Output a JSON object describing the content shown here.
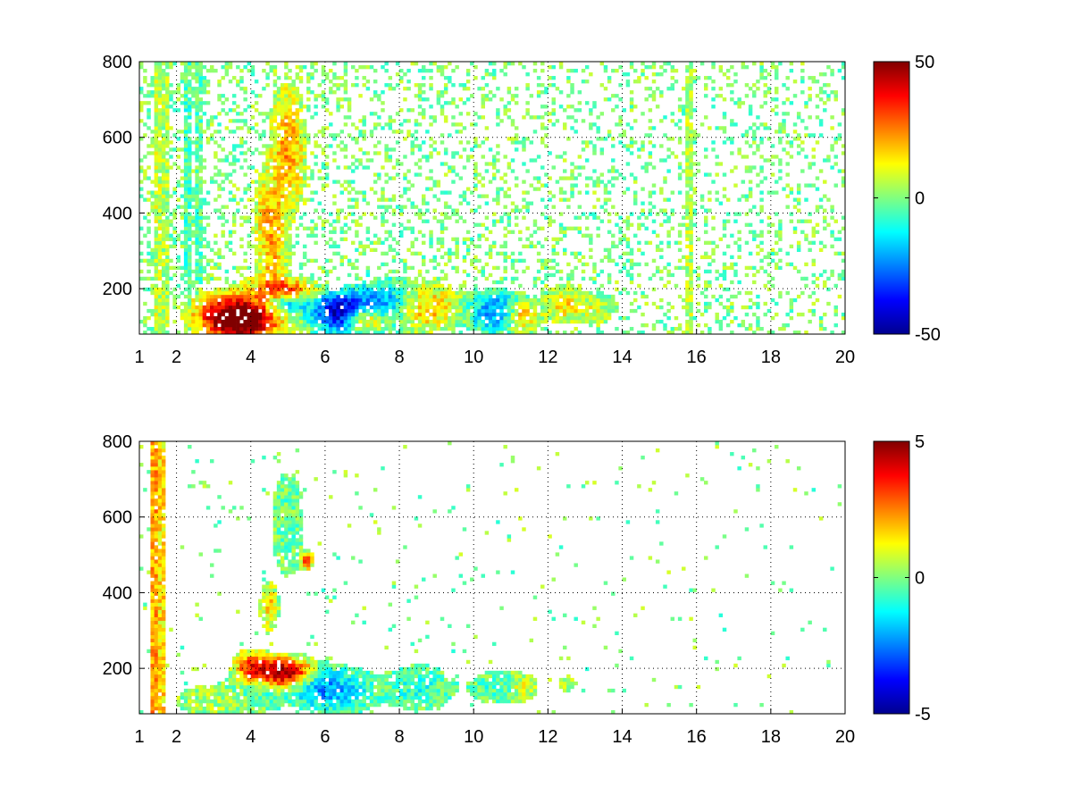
{
  "chart_data": [
    {
      "type": "heatmap",
      "title": "",
      "xlabel": "",
      "ylabel": "",
      "xlim": [
        1,
        20
      ],
      "ylim": [
        80,
        800
      ],
      "xticks": [
        "1",
        "2",
        "4",
        "6",
        "8",
        "10",
        "12",
        "14",
        "16",
        "18",
        "20"
      ],
      "yticks": [
        "200",
        "400",
        "600",
        "800"
      ],
      "grid": true,
      "colormap": "jet",
      "colorbar": {
        "min": -50,
        "max": 50,
        "ticks": [
          "-50",
          "0",
          "50"
        ]
      },
      "blobs": [
        {
          "x": 3.8,
          "y": 115,
          "sx": 0.55,
          "sy": 35,
          "value": 45
        },
        {
          "x": 3.2,
          "y": 130,
          "sx": 0.6,
          "sy": 40,
          "value": 30
        },
        {
          "x": 4.6,
          "y": 150,
          "sx": 0.6,
          "sy": 40,
          "value": 25
        },
        {
          "x": 5.0,
          "y": 195,
          "sx": 0.5,
          "sy": 20,
          "value": 30
        },
        {
          "x": 4.9,
          "y": 160,
          "sx": 0.45,
          "sy": 25,
          "value": -40
        },
        {
          "x": 6.4,
          "y": 140,
          "sx": 0.5,
          "sy": 35,
          "value": -45
        },
        {
          "x": 7.1,
          "y": 120,
          "sx": 0.35,
          "sy": 20,
          "value": 35
        },
        {
          "x": 7.6,
          "y": 160,
          "sx": 0.5,
          "sy": 40,
          "value": -25
        },
        {
          "x": 8.7,
          "y": 150,
          "sx": 0.6,
          "sy": 40,
          "value": 20
        },
        {
          "x": 10.6,
          "y": 140,
          "sx": 0.5,
          "sy": 35,
          "value": -25
        },
        {
          "x": 11.3,
          "y": 130,
          "sx": 0.3,
          "sy": 25,
          "value": 25
        },
        {
          "x": 4.5,
          "y": 380,
          "sx": 0.25,
          "sy": 80,
          "value": 20
        },
        {
          "x": 5.0,
          "y": 570,
          "sx": 0.3,
          "sy": 110,
          "value": 22
        },
        {
          "x": 4.6,
          "y": 260,
          "sx": 0.25,
          "sy": 50,
          "value": 12
        },
        {
          "x": 12.4,
          "y": 160,
          "sx": 0.3,
          "sy": 30,
          "value": 15
        },
        {
          "x": 13.2,
          "y": 150,
          "sx": 0.4,
          "sy": 25,
          "value": 8
        }
      ],
      "stripes": [
        {
          "x": 1.5,
          "value": 15
        },
        {
          "x": 1.7,
          "value": 10
        },
        {
          "x": 2.3,
          "value": -12
        },
        {
          "x": 2.6,
          "value": -8
        },
        {
          "x": 15.8,
          "value": 12
        }
      ],
      "speckle_density": 0.32
    },
    {
      "type": "heatmap",
      "title": "",
      "xlabel": "",
      "ylabel": "",
      "xlim": [
        1,
        20
      ],
      "ylim": [
        80,
        800
      ],
      "xticks": [
        "1",
        "2",
        "4",
        "6",
        "8",
        "10",
        "12",
        "14",
        "16",
        "18",
        "20"
      ],
      "yticks": [
        "200",
        "400",
        "600",
        "800"
      ],
      "grid": true,
      "colormap": "jet",
      "colorbar": {
        "min": -5,
        "max": 5,
        "ticks": [
          "-5",
          "0",
          "5"
        ]
      },
      "blobs": [
        {
          "x": 3.2,
          "y": 115,
          "sx": 0.7,
          "sy": 25,
          "value": 0.5
        },
        {
          "x": 4.0,
          "y": 200,
          "sx": 0.3,
          "sy": 30,
          "value": 3.5
        },
        {
          "x": 4.7,
          "y": 185,
          "sx": 0.35,
          "sy": 30,
          "value": 4.5
        },
        {
          "x": 5.3,
          "y": 190,
          "sx": 0.35,
          "sy": 25,
          "value": 3
        },
        {
          "x": 4.4,
          "y": 150,
          "sx": 0.5,
          "sy": 30,
          "value": -1.5
        },
        {
          "x": 5.8,
          "y": 150,
          "sx": 0.5,
          "sy": 35,
          "value": -2
        },
        {
          "x": 6.6,
          "y": 140,
          "sx": 0.5,
          "sy": 35,
          "value": -1.2
        },
        {
          "x": 8.5,
          "y": 150,
          "sx": 0.6,
          "sy": 35,
          "value": -0.9
        },
        {
          "x": 10.6,
          "y": 150,
          "sx": 0.4,
          "sy": 25,
          "value": -0.6
        },
        {
          "x": 11.3,
          "y": 150,
          "sx": 0.25,
          "sy": 20,
          "value": 1
        },
        {
          "x": 4.5,
          "y": 360,
          "sx": 0.15,
          "sy": 40,
          "value": 1.8
        },
        {
          "x": 5.0,
          "y": 580,
          "sx": 0.25,
          "sy": 80,
          "value": -0.3
        },
        {
          "x": 5.5,
          "y": 485,
          "sx": 0.12,
          "sy": 15,
          "value": 3
        },
        {
          "x": 12.5,
          "y": 160,
          "sx": 0.15,
          "sy": 12,
          "value": 0.6
        }
      ],
      "stripes": [
        {
          "x": 1.4,
          "value": 5
        },
        {
          "x": 1.6,
          "value": 3.5
        }
      ],
      "speckle_density": 0.03
    }
  ]
}
